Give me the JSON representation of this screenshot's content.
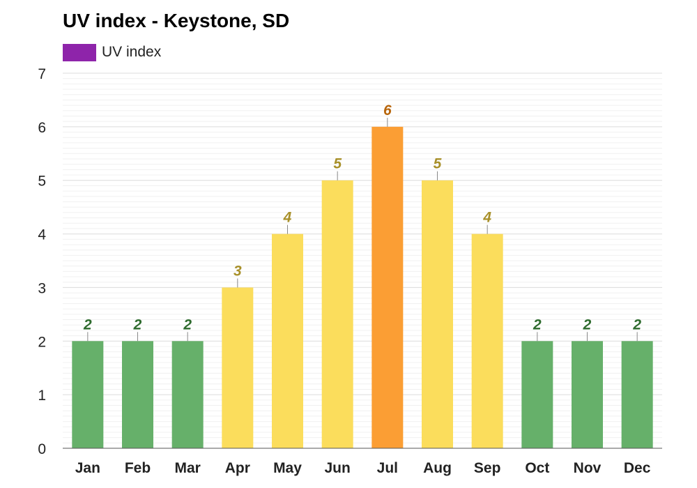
{
  "title": "UV index - Keystone, SD",
  "legend": {
    "label": "UV index",
    "color": "#8e24aa"
  },
  "chart_data": {
    "type": "bar",
    "title": "UV index - Keystone, SD",
    "categories": [
      "Jan",
      "Feb",
      "Mar",
      "Apr",
      "May",
      "Jun",
      "Jul",
      "Aug",
      "Sep",
      "Oct",
      "Nov",
      "Dec"
    ],
    "series": [
      {
        "name": "UV index",
        "values": [
          2,
          2,
          2,
          3,
          4,
          5,
          6,
          5,
          4,
          2,
          2,
          2
        ]
      }
    ],
    "ylim": [
      0,
      7
    ],
    "yticks": [
      0,
      1,
      2,
      3,
      4,
      5,
      6,
      7
    ],
    "grid": true,
    "legend_position": "top-left",
    "data_labels": true,
    "color_scale": {
      "low": {
        "bar": "#66b06a",
        "label": "#2e6b2e"
      },
      "moderate": {
        "bar": "#fbdd5c",
        "label": "#a8902a"
      },
      "high": {
        "bar": "#fb9e34",
        "label": "#b8650a"
      }
    }
  }
}
